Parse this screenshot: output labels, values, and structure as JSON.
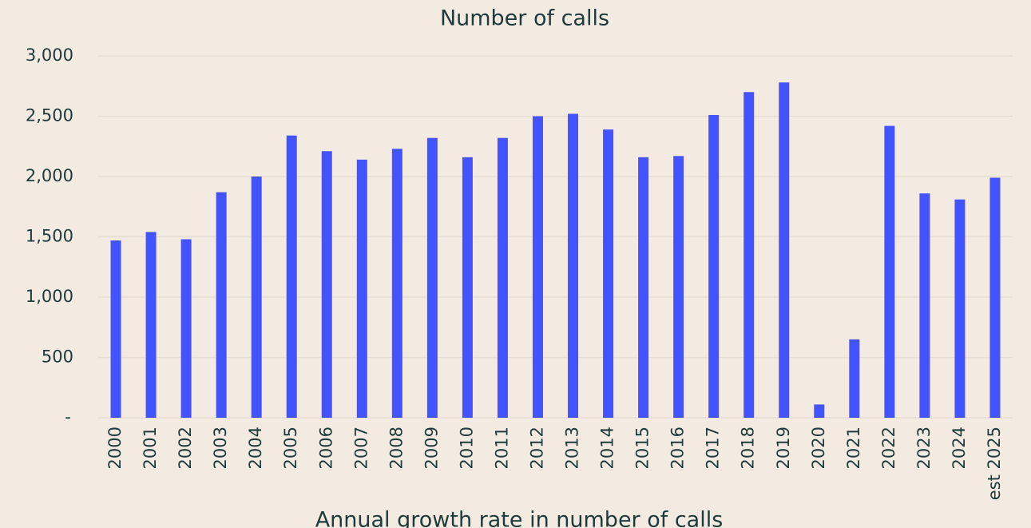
{
  "chart_data": {
    "type": "bar",
    "title": "Number of calls",
    "subtitle": "Annual growth rate in number of calls",
    "categories": [
      "2000",
      "2001",
      "2002",
      "2003",
      "2004",
      "2005",
      "2006",
      "2007",
      "2008",
      "2009",
      "2010",
      "2011",
      "2012",
      "2013",
      "2014",
      "2015",
      "2016",
      "2017",
      "2018",
      "2019",
      "2020",
      "2021",
      "2022",
      "2023",
      "2024",
      "est 2025"
    ],
    "values": [
      1470,
      1540,
      1480,
      1870,
      2000,
      2340,
      2210,
      2140,
      2230,
      2320,
      2160,
      2320,
      2500,
      2520,
      2390,
      2160,
      2170,
      2510,
      2700,
      2780,
      110,
      650,
      2420,
      1860,
      1810,
      1990
    ],
    "color": "#4353ff",
    "ylim": [
      0,
      3000
    ],
    "yticks": [
      {
        "value": 0,
        "label": "-"
      },
      500,
      {
        "value": 1000,
        "label": "1,000"
      },
      {
        "value": 1500,
        "label": "1,500"
      },
      {
        "value": 2000,
        "label": "2,000"
      },
      {
        "value": 2500,
        "label": "2,500"
      },
      {
        "value": 3000,
        "label": "3,000"
      }
    ],
    "grid": true
  }
}
